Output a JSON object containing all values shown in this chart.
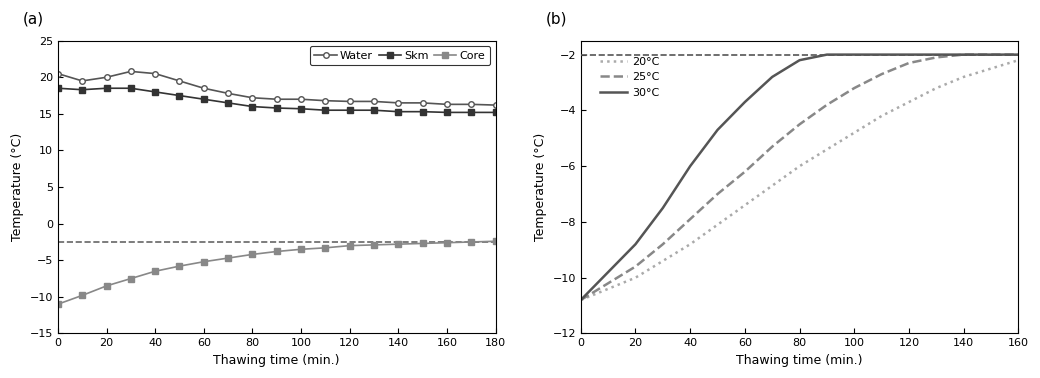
{
  "panel_a": {
    "label": "(a)",
    "xlabel": "Thawing time (min.)",
    "ylabel": "Temperature (°C)",
    "xlim": [
      0,
      180
    ],
    "ylim": [
      -15,
      25
    ],
    "yticks": [
      -15,
      -10,
      -5,
      0,
      5,
      10,
      15,
      20,
      25
    ],
    "xticks": [
      0,
      20,
      40,
      60,
      80,
      100,
      120,
      140,
      160,
      180
    ],
    "dashed_line_y": -2.5,
    "water": {
      "x": [
        0,
        10,
        20,
        30,
        40,
        50,
        60,
        70,
        80,
        90,
        100,
        110,
        120,
        130,
        140,
        150,
        160,
        170,
        180
      ],
      "y": [
        20.5,
        19.5,
        20.0,
        20.8,
        20.5,
        19.5,
        18.5,
        17.8,
        17.2,
        17.0,
        17.0,
        16.8,
        16.7,
        16.7,
        16.5,
        16.5,
        16.3,
        16.3,
        16.2
      ],
      "marker": "o",
      "markersize": 4,
      "linestyle": "-",
      "color": "#555555",
      "label": "Water",
      "markerfacecolor": "white"
    },
    "skin": {
      "x": [
        0,
        10,
        20,
        30,
        40,
        50,
        60,
        70,
        80,
        90,
        100,
        110,
        120,
        130,
        140,
        150,
        160,
        170,
        180
      ],
      "y": [
        18.5,
        18.3,
        18.5,
        18.5,
        18.0,
        17.5,
        17.0,
        16.5,
        16.0,
        15.8,
        15.7,
        15.5,
        15.5,
        15.5,
        15.3,
        15.3,
        15.2,
        15.2,
        15.2
      ],
      "marker": "s",
      "markersize": 4,
      "linestyle": "-",
      "color": "#333333",
      "label": "Skm",
      "markerfacecolor": "#333333"
    },
    "core": {
      "x": [
        0,
        10,
        20,
        30,
        40,
        50,
        60,
        70,
        80,
        90,
        100,
        110,
        120,
        130,
        140,
        150,
        160,
        170,
        180
      ],
      "y": [
        -11.0,
        -9.8,
        -8.5,
        -7.5,
        -6.5,
        -5.8,
        -5.2,
        -4.7,
        -4.2,
        -3.8,
        -3.5,
        -3.3,
        -3.0,
        -2.9,
        -2.8,
        -2.7,
        -2.6,
        -2.5,
        -2.4
      ],
      "marker": "s",
      "markersize": 4,
      "linestyle": "-",
      "color": "#888888",
      "label": "Core",
      "markerfacecolor": "#888888"
    }
  },
  "panel_b": {
    "label": "(b)",
    "xlabel": "Thawing time (min.)",
    "ylabel": "Temperature (°C)",
    "xlim": [
      0,
      160
    ],
    "ylim": [
      -12,
      -1.5
    ],
    "yticks": [
      -12,
      -10,
      -8,
      -6,
      -4,
      -2
    ],
    "xticks": [
      0,
      20,
      40,
      60,
      80,
      100,
      120,
      140,
      160
    ],
    "dashed_line_y": -2.0,
    "temp20": {
      "x": [
        0,
        5,
        10,
        20,
        30,
        40,
        50,
        60,
        70,
        80,
        90,
        100,
        110,
        120,
        130,
        140,
        150,
        160
      ],
      "y": [
        -10.8,
        -10.6,
        -10.4,
        -10.0,
        -9.4,
        -8.8,
        -8.1,
        -7.4,
        -6.7,
        -6.0,
        -5.4,
        -4.8,
        -4.2,
        -3.7,
        -3.2,
        -2.8,
        -2.5,
        -2.2
      ],
      "linestyle": ":",
      "color": "#aaaaaa",
      "label": "20°C",
      "linewidth": 1.8
    },
    "temp25": {
      "x": [
        0,
        5,
        10,
        20,
        30,
        40,
        50,
        60,
        70,
        80,
        90,
        100,
        110,
        120,
        130,
        140,
        150,
        160
      ],
      "y": [
        -10.8,
        -10.5,
        -10.2,
        -9.6,
        -8.8,
        -7.9,
        -7.0,
        -6.2,
        -5.3,
        -4.5,
        -3.8,
        -3.2,
        -2.7,
        -2.3,
        -2.1,
        -2.0,
        -2.0,
        -2.0
      ],
      "linestyle": "--",
      "color": "#888888",
      "label": "25°C",
      "linewidth": 1.8
    },
    "temp30": {
      "x": [
        0,
        5,
        10,
        20,
        30,
        40,
        50,
        60,
        70,
        80,
        90,
        100,
        110,
        120,
        130,
        140,
        150,
        160
      ],
      "y": [
        -10.8,
        -10.3,
        -9.8,
        -8.8,
        -7.5,
        -6.0,
        -4.7,
        -3.7,
        -2.8,
        -2.2,
        -2.0,
        -2.0,
        -2.0,
        -2.0,
        -2.0,
        -2.0,
        -2.0,
        -2.0
      ],
      "linestyle": "-",
      "color": "#555555",
      "label": "30°C",
      "linewidth": 1.8
    }
  }
}
